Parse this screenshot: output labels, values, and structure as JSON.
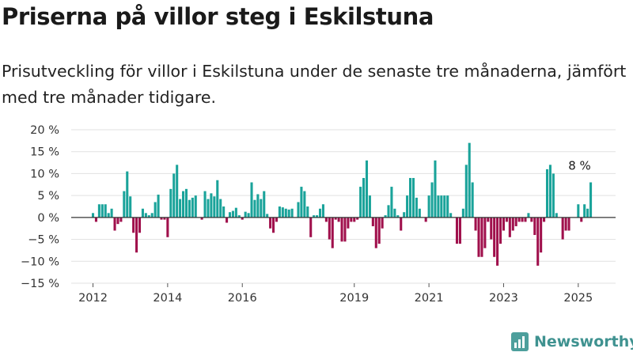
{
  "header": {
    "title": "Priserna på villor steg i Eskilstuna",
    "subtitle": "Prisutveckling för villor i Eskilstuna under de senaste tre månaderna, jämfört med tre månader tidigare."
  },
  "brand": {
    "name": "Newsworthy",
    "color": "#3f9290",
    "icon": "bar-chart-logo-icon"
  },
  "colors": {
    "positive": "#1aa39a",
    "negative": "#a0104c",
    "grid": "#e1e1e1",
    "zero": "#333333"
  },
  "chart_data": {
    "type": "bar",
    "title": "Priserna på villor steg i Eskilstuna",
    "subtitle": "Prisutveckling för villor i Eskilstuna under de senaste tre månaderna, jämfört med tre månader tidigare.",
    "xlabel": "",
    "ylabel": "",
    "unit": "%",
    "ylim": [
      -15,
      20
    ],
    "yticks": [
      20,
      15,
      10,
      5,
      0,
      -5,
      -10,
      -15
    ],
    "ytick_labels": [
      "20 %",
      "15 %",
      "10 %",
      "5 %",
      "0 %",
      "−5 %",
      "−10 %",
      "−15 %"
    ],
    "xlim": [
      "2011-06",
      "2026-01"
    ],
    "xticks": [
      "2012",
      "2014",
      "2016",
      "2019",
      "2021",
      "2023",
      "2025"
    ],
    "grid": true,
    "start": "2012-01",
    "frequency": "monthly",
    "values": [
      1,
      -1,
      3,
      3,
      3,
      1,
      2,
      -3,
      -1.5,
      -1,
      6,
      10.5,
      4.8,
      -3.5,
      -8,
      -3.5,
      2,
      1,
      0.5,
      1,
      3.5,
      5.2,
      -0.5,
      -0.5,
      -4.5,
      6.5,
      10,
      12,
      4.2,
      6,
      6.5,
      4,
      4.5,
      5,
      0,
      -0.5,
      6,
      4.2,
      5.5,
      4.8,
      8.5,
      4.2,
      2.5,
      -1.2,
      1.2,
      1.5,
      2.2,
      0.5,
      -0.5,
      1.3,
      1,
      8,
      4,
      5.3,
      4.2,
      6,
      0.8,
      -2.5,
      -3.5,
      -1,
      2.5,
      2.3,
      2,
      1.8,
      2,
      0,
      3.5,
      7,
      6,
      2.5,
      -4.5,
      0.5,
      0.5,
      2,
      3,
      -1,
      -5,
      -7,
      -0.5,
      -1,
      -5.5,
      -5.5,
      -2.5,
      -1,
      -1,
      -0.5,
      7,
      9,
      13,
      5,
      -2,
      -7,
      -6,
      -2.5,
      0.5,
      2.8,
      7,
      2,
      0.5,
      -3,
      1.2,
      5,
      9,
      9,
      4.5,
      2,
      0,
      -1,
      5,
      8,
      13,
      5,
      5,
      5,
      5,
      1,
      0,
      -6,
      -6,
      2,
      12,
      17,
      8,
      -3,
      -9,
      -9,
      -7,
      -1,
      -5,
      -9,
      -11,
      -6,
      -3,
      -1,
      -4.5,
      -3,
      -2,
      -1,
      -1,
      -1,
      1,
      -1,
      -4,
      -11,
      -8,
      -1,
      11,
      12,
      10,
      1,
      0,
      -5,
      -3,
      -3,
      0,
      0,
      3,
      -1,
      3,
      2,
      8
    ],
    "annotations": [
      {
        "label": "8 %",
        "target": "last"
      }
    ]
  }
}
